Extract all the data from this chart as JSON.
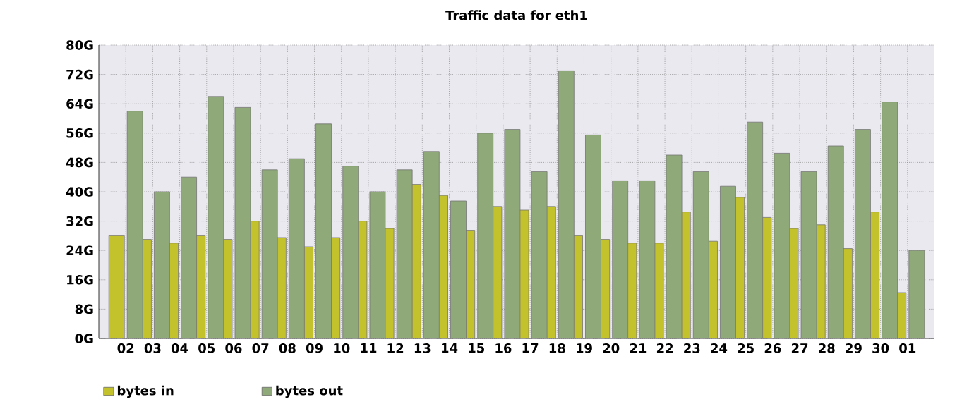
{
  "chart_data": {
    "type": "bar",
    "title": "Traffic data for eth1",
    "categories": [
      "02",
      "03",
      "04",
      "05",
      "06",
      "07",
      "08",
      "09",
      "10",
      "11",
      "12",
      "13",
      "14",
      "15",
      "16",
      "17",
      "18",
      "19",
      "20",
      "21",
      "22",
      "23",
      "24",
      "25",
      "26",
      "27",
      "28",
      "29",
      "30",
      "01"
    ],
    "series": [
      {
        "name": "bytes in",
        "color": "#c4c22c",
        "values": [
          28,
          27,
          26,
          28,
          27,
          32,
          27.5,
          25,
          27.5,
          32,
          30,
          42,
          39,
          29.5,
          36,
          35,
          36,
          28,
          27,
          26,
          26,
          34.5,
          26.5,
          38.5,
          33,
          30,
          31,
          24.5,
          34.5,
          12.5
        ]
      },
      {
        "name": "bytes out",
        "color": "#8faa78",
        "values": [
          62,
          40,
          44,
          66,
          63,
          46,
          49,
          58.5,
          47,
          40,
          46,
          51,
          37.5,
          56,
          57,
          45.5,
          73,
          55.5,
          43,
          43,
          50,
          45.5,
          41.5,
          59,
          50.5,
          45.5,
          52.5,
          57,
          64.5,
          24
        ]
      }
    ],
    "ylim": [
      0,
      80
    ],
    "yticks": [
      {
        "value": 0,
        "label": "0G"
      },
      {
        "value": 8,
        "label": "8G"
      },
      {
        "value": 16,
        "label": "16G"
      },
      {
        "value": 24,
        "label": "24G"
      },
      {
        "value": 32,
        "label": "32G"
      },
      {
        "value": 40,
        "label": "40G"
      },
      {
        "value": 48,
        "label": "48G"
      },
      {
        "value": 56,
        "label": "56G"
      },
      {
        "value": 64,
        "label": "64G"
      },
      {
        "value": 72,
        "label": "72G"
      },
      {
        "value": 80,
        "label": "80G"
      }
    ],
    "grid": true,
    "legend": "bottom"
  }
}
